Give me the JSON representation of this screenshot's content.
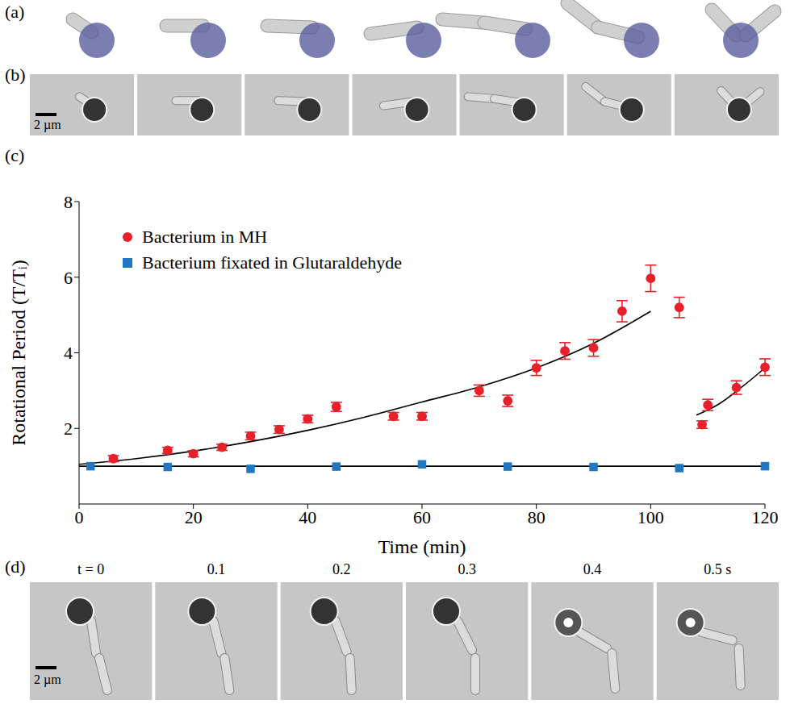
{
  "panel_labels": [
    "(a)",
    "(b)",
    "(c)",
    "(d)"
  ],
  "panel_b": {
    "scale_bar": "2 µm"
  },
  "panel_d": {
    "scale_bar": "2 µm",
    "times": [
      "t = 0",
      "0.1",
      "0.2",
      "0.3",
      "0.4",
      "0.5 s"
    ]
  },
  "chart_data": {
    "type": "scatter",
    "x_label": "Time (min)",
    "y_label": "Rotational Period (T/Tᵢ)",
    "xlim": [
      0,
      120
    ],
    "xticks": [
      0,
      20,
      40,
      60,
      80,
      100,
      120
    ],
    "ylim": [
      0,
      8
    ],
    "yticks": [
      2,
      4,
      6,
      8
    ],
    "legend": "upper left",
    "series": [
      {
        "name": "Bacterium in MH",
        "color": "#e8202a",
        "marker": "circle",
        "x": [
          6,
          15.5,
          20,
          25,
          30,
          35,
          40,
          45,
          55,
          60,
          70,
          75,
          80,
          85,
          90,
          95,
          100,
          105,
          109,
          110,
          115,
          120
        ],
        "values": [
          1.2,
          1.42,
          1.33,
          1.5,
          1.8,
          1.97,
          2.25,
          2.57,
          2.32,
          2.32,
          3.0,
          2.73,
          3.6,
          4.05,
          4.13,
          5.1,
          5.97,
          5.2,
          2.1,
          2.62,
          3.08,
          3.62
        ],
        "errors": [
          0.08,
          0.08,
          0.08,
          0.08,
          0.1,
          0.1,
          0.1,
          0.12,
          0.1,
          0.1,
          0.15,
          0.15,
          0.2,
          0.22,
          0.22,
          0.28,
          0.35,
          0.27,
          0.1,
          0.15,
          0.18,
          0.22
        ]
      },
      {
        "name": "Bacterium fixated in Glutaraldehyde",
        "color": "#1f78c1",
        "marker": "square",
        "x": [
          2,
          15.5,
          30,
          45,
          60,
          75,
          90,
          105,
          120
        ],
        "values": [
          1.0,
          0.98,
          0.93,
          0.99,
          1.05,
          0.99,
          0.98,
          0.95,
          1.0
        ]
      }
    ],
    "fits": [
      {
        "color": "#000000",
        "line_style": "solid",
        "x": [
          0,
          10,
          20,
          30,
          40,
          50,
          60,
          70,
          80,
          90,
          100
        ],
        "values": [
          1.05,
          1.2,
          1.4,
          1.65,
          1.95,
          2.3,
          2.7,
          3.1,
          3.6,
          4.25,
          5.1
        ]
      },
      {
        "color": "#000000",
        "line_style": "solid",
        "x": [
          108,
          112,
          116,
          120
        ],
        "values": [
          2.35,
          2.65,
          3.1,
          3.6
        ]
      },
      {
        "color": "#000000",
        "line_style": "solid",
        "x": [
          0,
          120
        ],
        "values": [
          1,
          1
        ]
      }
    ]
  }
}
